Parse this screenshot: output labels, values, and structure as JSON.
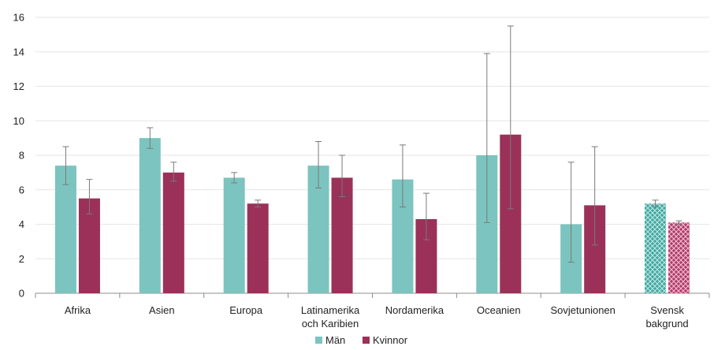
{
  "chart_data": {
    "type": "bar",
    "categories": [
      "Afrika",
      "Asien",
      "Europa",
      "Latinamerika och Karibien",
      "Nordamerika",
      "Oceanien",
      "Sovjetunionen",
      "Svensk bakgrund"
    ],
    "category_lines": [
      [
        "Afrika"
      ],
      [
        "Asien"
      ],
      [
        "Europa"
      ],
      [
        "Latinamerika",
        "och Karibien"
      ],
      [
        "Nordamerika"
      ],
      [
        "Oceanien"
      ],
      [
        "Sovjetunionen"
      ],
      [
        "Svensk",
        "bakgrund"
      ]
    ],
    "series": [
      {
        "name": "Män",
        "color": "#7cc4bf",
        "values": [
          7.4,
          9.0,
          6.7,
          7.4,
          6.6,
          8.0,
          4.0,
          5.2
        ],
        "error_low": [
          6.3,
          8.4,
          6.4,
          6.1,
          5.0,
          4.1,
          1.8,
          5.0
        ],
        "error_high": [
          8.5,
          9.6,
          7.0,
          8.8,
          8.6,
          13.9,
          7.6,
          5.4
        ]
      },
      {
        "name": "Kvinnor",
        "color": "#9b3158",
        "values": [
          5.5,
          7.0,
          5.2,
          6.7,
          4.3,
          9.2,
          5.1,
          4.1
        ],
        "error_low": [
          4.6,
          6.5,
          5.0,
          5.6,
          3.1,
          4.9,
          2.8,
          4.0
        ],
        "error_high": [
          6.6,
          7.6,
          5.4,
          8.0,
          5.8,
          15.5,
          8.5,
          4.2
        ]
      }
    ],
    "patterned_category": "Svensk bakgrund",
    "ylim": [
      0,
      16
    ],
    "yticks": [
      0,
      2,
      4,
      6,
      8,
      10,
      12,
      14,
      16
    ],
    "grid": true,
    "legend_position": "bottom"
  }
}
